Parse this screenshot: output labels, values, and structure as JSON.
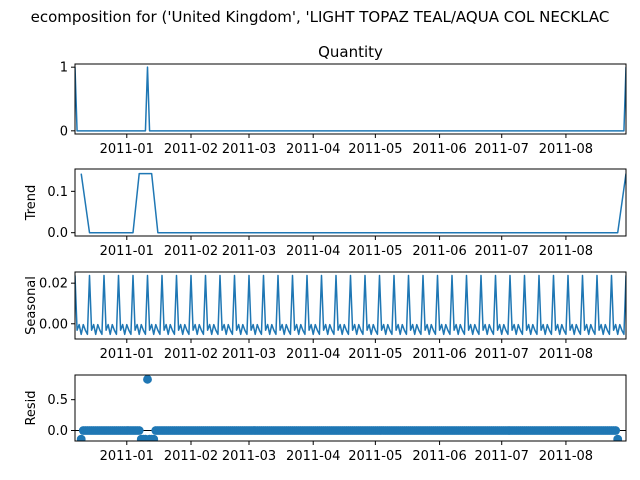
{
  "suptitle": "ecomposition for ('United Kingdom', 'LIGHT TOPAZ TEAL/AQUA COL NECKLAC",
  "colors": {
    "line": "#1f77b4",
    "axis": "#000000",
    "background": "#ffffff"
  },
  "x_tick_labels": [
    "2011-01",
    "2011-02",
    "2011-03",
    "2011-04",
    "2011-05",
    "2011-06",
    "2011-07",
    "2011-08"
  ],
  "chart_data": [
    {
      "type": "line",
      "title": "Quantity",
      "ylabel": "",
      "xlim": [
        "2010-12-07",
        "2011-08-30"
      ],
      "ylim": [
        -0.05,
        1.05
      ],
      "yticks": [
        0,
        1
      ],
      "grid": false,
      "x": [
        "2010-12-07",
        "2010-12-08",
        "2011-01-10",
        "2011-01-11",
        "2011-01-12",
        "2011-08-29",
        "2011-08-30"
      ],
      "values": [
        1,
        0,
        0,
        1,
        0,
        0,
        1
      ]
    },
    {
      "type": "line",
      "title": "",
      "ylabel": "Trend",
      "xlim": [
        "2010-12-07",
        "2011-08-30"
      ],
      "ylim": [
        -0.008,
        0.154
      ],
      "yticks": [
        0.0,
        0.1
      ],
      "grid": false,
      "x": [
        "2010-12-10",
        "2010-12-14",
        "2011-01-04",
        "2011-01-07",
        "2011-01-13",
        "2011-01-16",
        "2011-08-26",
        "2011-08-30"
      ],
      "values": [
        0.1429,
        0,
        0,
        0.1429,
        0.1429,
        0,
        0,
        0.1429
      ]
    },
    {
      "type": "line",
      "title": "",
      "ylabel": "Seasonal",
      "xlim": [
        "2010-12-07",
        "2011-08-30"
      ],
      "ylim": [
        -0.0075,
        0.0255
      ],
      "yticks": [
        0.0,
        0.02
      ],
      "grid": false,
      "period_days": 7,
      "first_x": "2010-12-07",
      "period_values": [
        0.0238,
        -0.0032,
        -0.0004,
        -0.0052,
        -0.0004,
        -0.0032,
        -0.0052
      ]
    },
    {
      "type": "scatter",
      "title": "",
      "ylabel": "Resid",
      "xlim": [
        "2010-12-07",
        "2011-08-30"
      ],
      "ylim": [
        -0.17,
        0.9
      ],
      "yticks": [
        0.0,
        0.5
      ],
      "grid": false,
      "baseline": 0,
      "start": "2010-12-10",
      "end": "2011-08-26",
      "outliers": [
        {
          "x": "2010-12-10",
          "y": -0.14
        },
        {
          "x": "2011-01-08",
          "y": -0.14
        },
        {
          "x": "2011-01-09",
          "y": -0.14
        },
        {
          "x": "2011-01-10",
          "y": -0.14
        },
        {
          "x": "2011-01-11",
          "y": 0.83
        },
        {
          "x": "2011-01-12",
          "y": -0.14
        },
        {
          "x": "2011-01-13",
          "y": -0.14
        },
        {
          "x": "2011-01-14",
          "y": -0.14
        },
        {
          "x": "2011-08-26",
          "y": -0.14
        }
      ]
    }
  ]
}
